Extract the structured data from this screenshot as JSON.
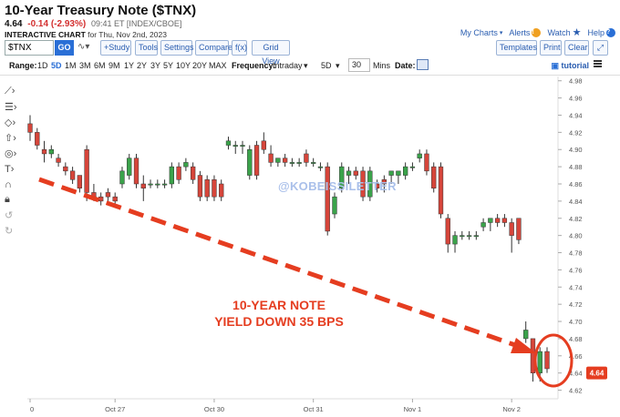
{
  "header": {
    "title": "10-Year Treasury Note ($TNX)",
    "last": "4.64",
    "change": "-0.14 (-2.93%)",
    "time": "09:41 ET [INDEX/CBOE]",
    "chart_label": "INTERACTIVE CHART",
    "chart_date": "for Thu, Nov 2nd, 2023"
  },
  "toplinks": {
    "my_charts": "My Charts",
    "alerts": "Alerts",
    "watch": "Watch",
    "help": "Help"
  },
  "toolbar": {
    "symbol": "$TNX",
    "go": "GO",
    "study": "+Study",
    "tools": "Tools",
    "settings": "Settings",
    "compare": "Compare",
    "fx": "f(x)",
    "grid_view": "Grid View",
    "templates": "Templates",
    "print": "Print",
    "clear": "Clear",
    "expand": "⤢"
  },
  "controls": {
    "range_label": "Range:",
    "ranges": [
      "1D",
      "5D",
      "1M",
      "3M",
      "6M",
      "9M",
      "1Y",
      "2Y",
      "3Y",
      "5Y",
      "10Y",
      "20Y",
      "MAX"
    ],
    "selected_range": "5D",
    "frequency_label": "Frequency:",
    "frequency": "Intraday",
    "period": "5D",
    "interval": "30",
    "interval_unit": "Mins",
    "date_label": "Date:",
    "tutorial": "tutorial"
  },
  "colors": {
    "up": "#3aa34a",
    "down": "#d6453a",
    "annotation": "#e53d20",
    "last_badge": "#e53d20",
    "accent": "#2a6fd6"
  },
  "watermark": "@KOBEISSILETTER",
  "annotation": {
    "line1": "10-YEAR NOTE",
    "line2": "YIELD DOWN 35 BPS"
  },
  "chart_data": {
    "type": "candlestick",
    "ylim": [
      4.61,
      4.985
    ],
    "y_ticks": [
      "4.98",
      "4.96",
      "4.94",
      "4.92",
      "4.90",
      "4.88",
      "4.86",
      "4.84",
      "4.82",
      "4.80",
      "4.78",
      "4.76",
      "4.74",
      "4.72",
      "4.70",
      "4.68",
      "4.66",
      "4.64",
      "4.62"
    ],
    "x_labels": [
      {
        "label": "0",
        "i": 0
      },
      {
        "label": "Oct 27",
        "i": 12
      },
      {
        "label": "Oct 30",
        "i": 26
      },
      {
        "label": "Oct 31",
        "i": 40
      },
      {
        "label": "Nov 1",
        "i": 54
      },
      {
        "label": "Nov 2",
        "i": 68
      }
    ],
    "last_value": "4.64",
    "candles": [
      [
        4.93,
        4.94,
        4.91,
        4.92
      ],
      [
        4.92,
        4.925,
        4.9,
        4.905
      ],
      [
        4.9,
        4.91,
        4.885,
        4.895
      ],
      [
        4.895,
        4.905,
        4.89,
        4.9
      ],
      [
        4.89,
        4.895,
        4.88,
        4.885
      ],
      [
        4.88,
        4.885,
        4.87,
        4.875
      ],
      [
        4.875,
        4.88,
        4.86,
        4.865
      ],
      [
        4.87,
        4.87,
        4.85,
        4.855
      ],
      [
        4.9,
        4.905,
        4.84,
        4.85
      ],
      [
        4.85,
        4.86,
        4.84,
        4.845
      ],
      [
        4.845,
        4.85,
        4.835,
        4.84
      ],
      [
        4.85,
        4.855,
        4.84,
        4.845
      ],
      [
        4.845,
        4.85,
        4.835,
        4.84
      ],
      [
        4.86,
        4.88,
        4.855,
        4.875
      ],
      [
        4.87,
        4.895,
        4.865,
        4.89
      ],
      [
        4.89,
        4.895,
        4.855,
        4.86
      ],
      [
        4.86,
        4.87,
        4.84,
        4.855
      ],
      [
        4.86,
        4.865,
        4.855,
        4.86
      ],
      [
        4.86,
        4.865,
        4.855,
        4.86
      ],
      [
        4.86,
        4.865,
        4.855,
        4.86
      ],
      [
        4.86,
        4.885,
        4.855,
        4.88
      ],
      [
        4.88,
        4.885,
        4.86,
        4.865
      ],
      [
        4.88,
        4.89,
        4.875,
        4.885
      ],
      [
        4.88,
        4.885,
        4.86,
        4.865
      ],
      [
        4.87,
        4.875,
        4.84,
        4.845
      ],
      [
        4.865,
        4.87,
        4.84,
        4.845
      ],
      [
        4.865,
        4.87,
        4.84,
        4.845
      ],
      [
        4.86,
        4.865,
        4.84,
        4.845
      ],
      [
        4.905,
        4.915,
        4.9,
        4.91
      ],
      [
        4.905,
        4.91,
        4.895,
        4.905
      ],
      [
        4.905,
        4.91,
        4.895,
        4.905
      ],
      [
        4.87,
        4.905,
        4.865,
        4.9
      ],
      [
        4.905,
        4.91,
        4.865,
        4.87
      ],
      [
        4.91,
        4.92,
        4.895,
        4.9
      ],
      [
        4.895,
        4.905,
        4.88,
        4.885
      ],
      [
        4.885,
        4.89,
        4.88,
        4.89
      ],
      [
        4.89,
        4.895,
        4.88,
        4.885
      ],
      [
        4.885,
        4.89,
        4.88,
        4.885
      ],
      [
        4.885,
        4.89,
        4.88,
        4.885
      ],
      [
        4.895,
        4.9,
        4.88,
        4.885
      ],
      [
        4.885,
        4.89,
        4.88,
        4.885
      ],
      [
        4.88,
        4.885,
        4.875,
        4.88
      ],
      [
        4.88,
        4.885,
        4.8,
        4.805
      ],
      [
        4.825,
        4.85,
        4.82,
        4.845
      ],
      [
        4.855,
        4.885,
        4.85,
        4.88
      ],
      [
        4.87,
        4.88,
        4.86,
        4.875
      ],
      [
        4.875,
        4.88,
        4.865,
        4.87
      ],
      [
        4.875,
        4.88,
        4.84,
        4.845
      ],
      [
        4.845,
        4.88,
        4.84,
        4.875
      ],
      [
        4.86,
        4.865,
        4.85,
        4.855
      ],
      [
        4.865,
        4.87,
        4.85,
        4.86
      ],
      [
        4.87,
        4.875,
        4.86,
        4.875
      ],
      [
        4.87,
        4.875,
        4.86,
        4.875
      ],
      [
        4.87,
        4.885,
        4.865,
        4.88
      ],
      [
        4.88,
        4.885,
        4.875,
        4.88
      ],
      [
        4.89,
        4.9,
        4.885,
        4.895
      ],
      [
        4.895,
        4.9,
        4.87,
        4.875
      ],
      [
        4.88,
        4.885,
        4.85,
        4.855
      ],
      [
        4.88,
        4.885,
        4.82,
        4.825
      ],
      [
        4.82,
        4.825,
        4.78,
        4.79
      ],
      [
        4.79,
        4.805,
        4.78,
        4.8
      ],
      [
        4.8,
        4.805,
        4.795,
        4.8
      ],
      [
        4.8,
        4.805,
        4.795,
        4.8
      ],
      [
        4.8,
        4.805,
        4.795,
        4.8
      ],
      [
        4.81,
        4.82,
        4.805,
        4.815
      ],
      [
        4.815,
        4.82,
        4.805,
        4.82
      ],
      [
        4.82,
        4.825,
        4.81,
        4.815
      ],
      [
        4.82,
        4.825,
        4.81,
        4.815
      ],
      [
        4.815,
        4.82,
        4.78,
        4.8
      ],
      [
        4.82,
        4.82,
        4.79,
        4.795
      ],
      [
        4.68,
        4.7,
        4.675,
        4.69
      ],
      [
        4.68,
        4.68,
        4.63,
        4.64
      ],
      [
        4.64,
        4.67,
        4.63,
        4.665
      ],
      [
        4.665,
        4.67,
        4.64,
        4.645
      ]
    ]
  }
}
